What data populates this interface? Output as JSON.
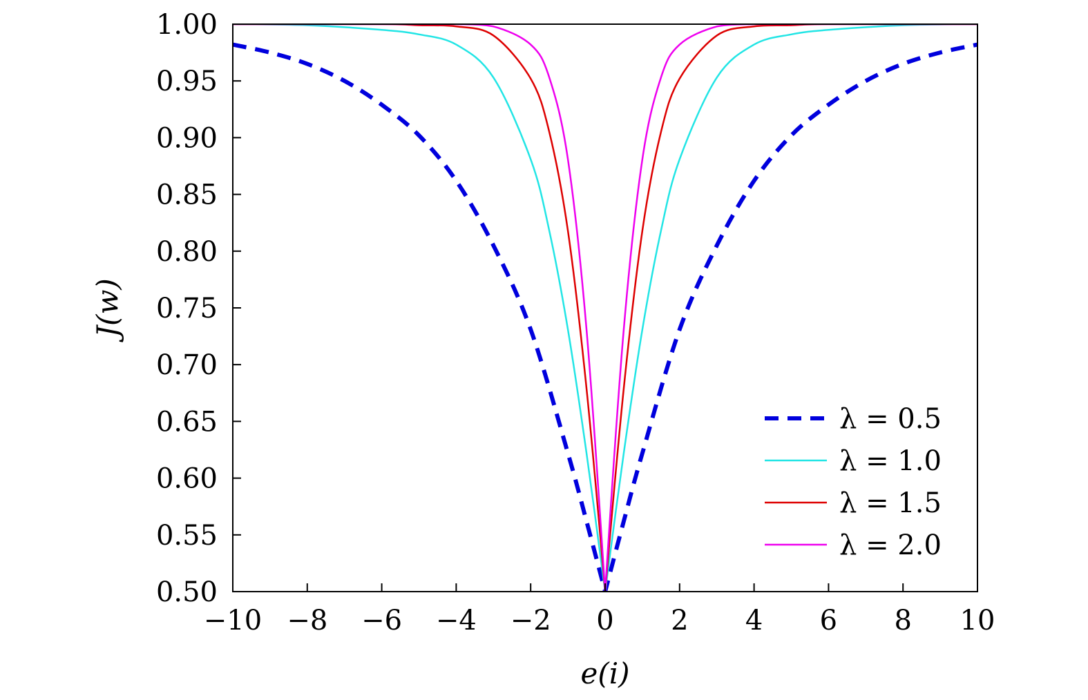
{
  "chart_data": {
    "type": "line",
    "title": "",
    "xlabel": "e(i)",
    "ylabel": "J(w)",
    "xlim": [
      -10,
      10
    ],
    "ylim": [
      0.5,
      1.0
    ],
    "grid": false,
    "legend_position": "bottom-right",
    "xticks": [
      -10,
      -8,
      -6,
      -4,
      -2,
      0,
      2,
      4,
      6,
      8,
      10
    ],
    "xtick_labels": [
      "−10",
      "−8",
      "−6",
      "−4",
      "−2",
      "0",
      "2",
      "4",
      "6",
      "8",
      "10"
    ],
    "yticks": [
      0.5,
      0.55,
      0.6,
      0.65,
      0.7,
      0.75,
      0.8,
      0.85,
      0.9,
      0.95,
      1.0
    ],
    "ytick_labels": [
      "0.50",
      "0.55",
      "0.60",
      "0.65",
      "0.70",
      "0.75",
      "0.80",
      "0.85",
      "0.90",
      "0.95",
      "1.00"
    ],
    "series": [
      {
        "name": "λ = 0.5",
        "color": "#0000dd",
        "style": "dashed",
        "x": [
          -10,
          -9,
          -8,
          -7,
          -6,
          -5,
          -4,
          -3,
          -2,
          -1,
          -0.5,
          0,
          0.5,
          1,
          2,
          3,
          4,
          5,
          6,
          7,
          8,
          9,
          10
        ],
        "y": [
          0.982,
          0.975,
          0.965,
          0.95,
          0.929,
          0.902,
          0.862,
          0.805,
          0.731,
          0.622,
          0.562,
          0.5,
          0.562,
          0.622,
          0.731,
          0.805,
          0.862,
          0.902,
          0.929,
          0.95,
          0.965,
          0.975,
          0.982
        ]
      },
      {
        "name": "λ = 1.0",
        "color": "#22e5e5",
        "style": "solid",
        "x": [
          -10,
          -8,
          -6,
          -5,
          -4,
          -3,
          -2,
          -1.5,
          -1,
          -0.5,
          0,
          0.5,
          1,
          1.5,
          2,
          3,
          4,
          5,
          6,
          8,
          10
        ],
        "y": [
          1.0,
          0.999,
          0.995,
          0.991,
          0.982,
          0.953,
          0.881,
          0.818,
          0.731,
          0.622,
          0.5,
          0.622,
          0.731,
          0.818,
          0.881,
          0.953,
          0.982,
          0.991,
          0.995,
          0.999,
          1.0
        ],
        "legend_label": "λ = 1.0"
      },
      {
        "name": "λ = 1.5",
        "color": "#dd0000",
        "style": "solid",
        "x": [
          -10,
          -6,
          -5,
          -4,
          -3,
          -2,
          -1.5,
          -1,
          -0.5,
          0,
          0.5,
          1,
          1.5,
          2,
          3,
          4,
          5,
          6,
          10
        ],
        "y": [
          1.0,
          1.0,
          0.999,
          0.998,
          0.99,
          0.952,
          0.905,
          0.818,
          0.679,
          0.5,
          0.679,
          0.818,
          0.905,
          0.952,
          0.99,
          0.998,
          0.999,
          1.0,
          1.0
        ]
      },
      {
        "name": "λ = 2.0",
        "color": "#ee00ee",
        "style": "solid",
        "x": [
          -10,
          -5,
          -4,
          -3,
          -2,
          -1.5,
          -1,
          -0.5,
          0,
          0.5,
          1,
          1.5,
          2,
          3,
          4,
          5,
          10
        ],
        "y": [
          1.0,
          1.0,
          1.0,
          0.998,
          0.982,
          0.953,
          0.881,
          0.731,
          0.5,
          0.731,
          0.881,
          0.953,
          0.982,
          0.998,
          1.0,
          1.0,
          1.0
        ]
      }
    ]
  }
}
